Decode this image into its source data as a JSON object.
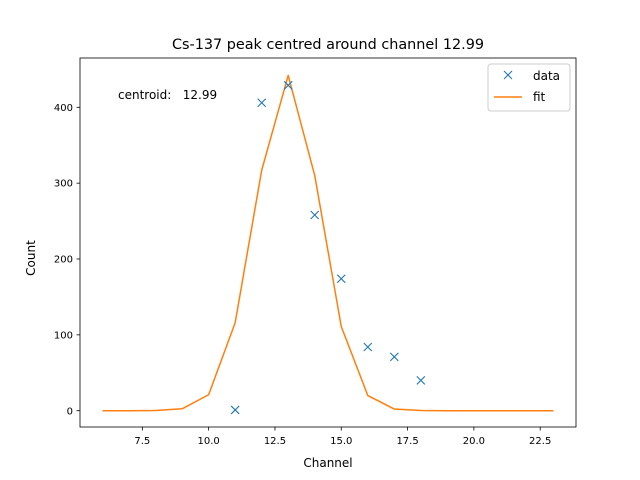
{
  "chart_data": {
    "type": "line",
    "title": "Cs-137 peak centred around channel 12.99",
    "xlabel": "Channel",
    "ylabel": "Count",
    "xlim": [
      5.15,
      23.85
    ],
    "ylim": [
      -21.5,
      465
    ],
    "xticks": [
      7.5,
      10.0,
      12.5,
      15.0,
      17.5,
      20.0,
      22.5
    ],
    "xtick_labels": [
      "7.5",
      "10.0",
      "12.5",
      "15.0",
      "17.5",
      "20.0",
      "22.5"
    ],
    "yticks": [
      0,
      100,
      200,
      300,
      400
    ],
    "ytick_labels": [
      "0",
      "100",
      "200",
      "300",
      "400"
    ],
    "grid": false,
    "legend_position": "upper-right",
    "annotation": "centroid:   12.99",
    "series": [
      {
        "name": "data",
        "style": "markers-x",
        "color": "#1f77b4",
        "x": [
          11,
          12,
          13,
          14,
          15,
          16,
          17,
          18
        ],
        "y": [
          1,
          406,
          429,
          258,
          174,
          84,
          71,
          40
        ]
      },
      {
        "name": "fit",
        "style": "line",
        "color": "#ff7f0e",
        "x": [
          6,
          7,
          8,
          9,
          10,
          11,
          12,
          13,
          14,
          15,
          16,
          17,
          18,
          19,
          20,
          21,
          22,
          23
        ],
        "y": [
          0,
          0,
          0.3,
          2.5,
          21,
          116,
          317,
          442,
          310,
          111,
          20,
          2.2,
          0.2,
          0,
          0,
          0,
          0,
          0
        ]
      }
    ]
  }
}
